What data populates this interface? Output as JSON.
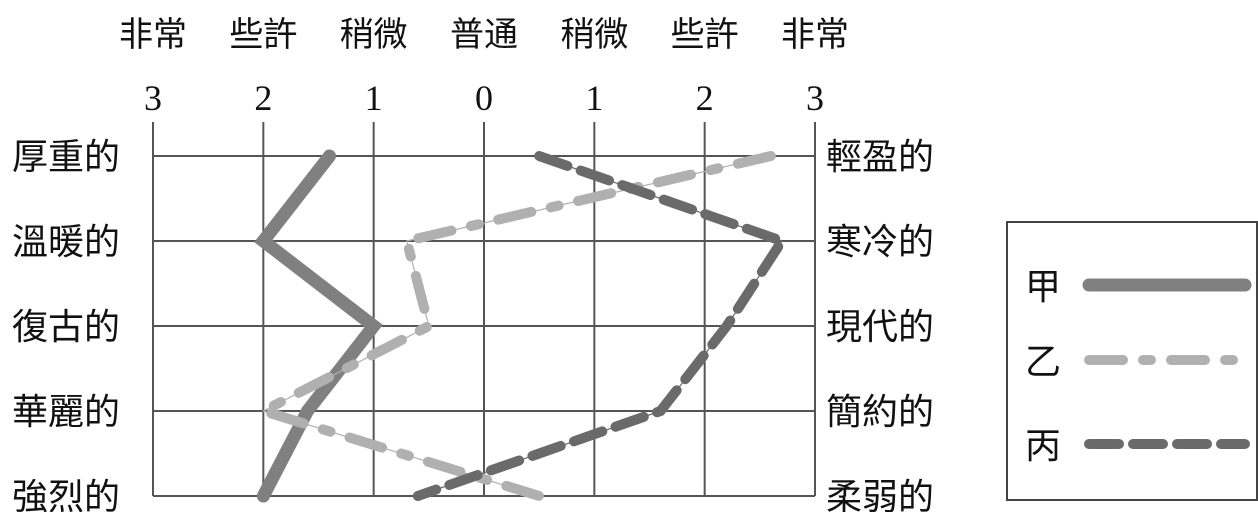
{
  "chart_data": {
    "type": "line",
    "top_labels": [
      "非常",
      "些許",
      "稍微",
      "普通",
      "稍微",
      "些許",
      "非常"
    ],
    "x_ticks": [
      "3",
      "2",
      "1",
      "0",
      "1",
      "2",
      "3"
    ],
    "left_labels": [
      "厚重的",
      "溫暖的",
      "復古的",
      "華麗的",
      "強烈的"
    ],
    "right_labels": [
      "輕盈的",
      "寒冷的",
      "現代的",
      "簡約的",
      "柔弱的"
    ],
    "xlim": [
      -3,
      3
    ],
    "series": [
      {
        "name": "甲",
        "style": "solid",
        "color": "#808080",
        "values": [
          -1.4,
          -2.0,
          -1.0,
          -1.6,
          -2.0
        ]
      },
      {
        "name": "乙",
        "style": "dash-dot",
        "color": "#b0b0b0",
        "values": [
          2.6,
          -0.7,
          -0.5,
          -2.0,
          0.5
        ]
      },
      {
        "name": "丙",
        "style": "dashed",
        "color": "#6a6a6a",
        "values": [
          0.5,
          2.7,
          2.2,
          1.6,
          -0.6
        ]
      }
    ],
    "grid": true,
    "legend_position": "right"
  }
}
